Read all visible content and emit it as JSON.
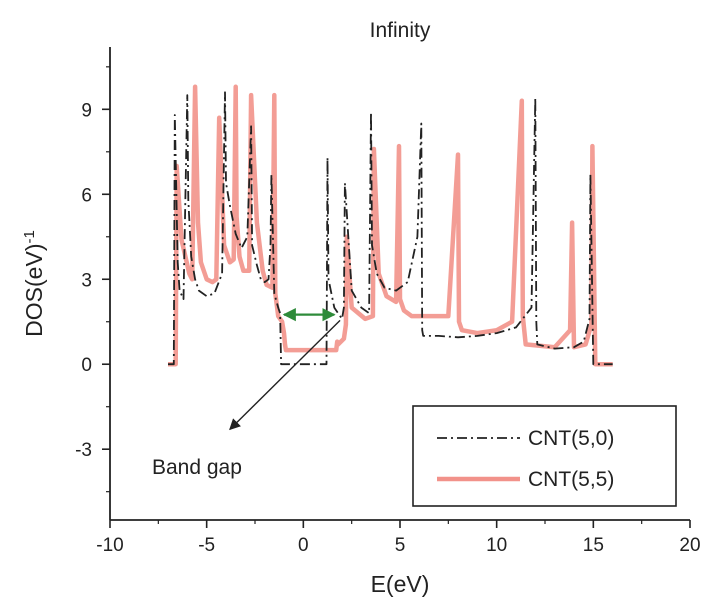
{
  "chart_data": {
    "type": "line",
    "title": "Infinity",
    "xlabel": "E(eV)",
    "ylabel": "DOS(eV)",
    "ylabel_superscript": "-1",
    "xlim": [
      -10,
      20
    ],
    "ylim": [
      -5.5,
      11.2
    ],
    "xticks": [
      -10,
      -5,
      0,
      5,
      10,
      15,
      20
    ],
    "yticks": [
      -3,
      0,
      3,
      6,
      9
    ],
    "legend_position": "lower-right",
    "annotation": {
      "text": "Band gap"
    },
    "series": [
      {
        "name": "CNT(5,0)",
        "color": "#222222",
        "style": "dash-dot",
        "x": [
          -7.0,
          -6.7,
          -6.65,
          -6.5,
          -6.4,
          -6.2,
          -6.0,
          -5.95,
          -5.8,
          -5.6,
          -5.4,
          -5.0,
          -4.6,
          -4.2,
          -4.05,
          -4.0,
          -3.8,
          -3.5,
          -3.2,
          -2.9,
          -2.7,
          -2.65,
          -2.4,
          -2.2,
          -2.0,
          -1.8,
          -1.7,
          -1.65,
          -1.5,
          -1.3,
          -1.2,
          -1.15,
          -1.1,
          1.2,
          1.25,
          1.3,
          1.6,
          2.0,
          2.1,
          2.15,
          2.5,
          3.0,
          3.4,
          3.5,
          3.55,
          3.8,
          4.2,
          4.8,
          5.4,
          5.9,
          6.1,
          6.15,
          6.2,
          7.0,
          8.0,
          9.0,
          10.0,
          11.0,
          11.8,
          12.0,
          12.05,
          12.1,
          13.0,
          14.0,
          14.5,
          14.8,
          14.85,
          15.0,
          15.5,
          16.0
        ],
        "y": [
          0.0,
          0.0,
          8.8,
          3.6,
          2.6,
          2.3,
          9.5,
          5.8,
          3.8,
          3.0,
          2.6,
          2.4,
          2.5,
          3.2,
          9.6,
          6.4,
          5.6,
          4.6,
          4.1,
          4.5,
          8.4,
          4.2,
          3.5,
          3.0,
          2.9,
          3.0,
          4.2,
          6.7,
          2.5,
          2.0,
          1.8,
          0.0,
          0.0,
          0.0,
          7.3,
          3.0,
          2.0,
          1.6,
          2.0,
          6.4,
          2.6,
          2.0,
          1.8,
          8.9,
          4.2,
          3.2,
          2.7,
          2.6,
          2.9,
          4.5,
          8.5,
          1.2,
          1.0,
          1.0,
          0.95,
          1.0,
          1.1,
          1.3,
          2.0,
          9.4,
          1.5,
          0.7,
          0.55,
          0.6,
          0.8,
          1.6,
          6.7,
          0.0,
          0.0,
          0.0
        ]
      },
      {
        "name": "CNT(5,5)",
        "color": "#f2928a",
        "style": "solid",
        "x": [
          -7.0,
          -6.6,
          -6.55,
          -6.3,
          -5.9,
          -5.75,
          -5.6,
          -5.45,
          -5.3,
          -5.0,
          -4.7,
          -4.5,
          -4.35,
          -4.1,
          -3.8,
          -3.6,
          -3.5,
          -3.45,
          -3.3,
          -3.1,
          -2.8,
          -2.7,
          -2.4,
          -2.1,
          -1.9,
          -1.6,
          -1.5,
          -1.45,
          -1.3,
          -1.1,
          -1.0,
          -0.95,
          -0.9,
          1.7,
          1.75,
          1.8,
          2.1,
          2.2,
          2.25,
          2.5,
          3.2,
          3.6,
          3.65,
          3.9,
          4.3,
          4.8,
          4.95,
          5.0,
          5.2,
          5.6,
          7.5,
          8.0,
          8.05,
          8.2,
          9.0,
          10.0,
          10.8,
          11.3,
          11.35,
          11.5,
          13.0,
          13.8,
          13.9,
          14.0,
          14.6,
          14.9,
          14.95,
          15.1,
          16.0
        ],
        "y": [
          0.0,
          0.0,
          7.0,
          4.4,
          3.2,
          3.0,
          9.8,
          5.0,
          3.6,
          3.0,
          2.9,
          3.0,
          8.7,
          4.2,
          3.6,
          3.7,
          9.8,
          5.2,
          3.8,
          3.3,
          3.3,
          9.5,
          5.0,
          3.3,
          2.8,
          2.7,
          9.5,
          2.5,
          1.7,
          1.5,
          1.1,
          0.7,
          0.5,
          0.5,
          0.8,
          0.7,
          0.9,
          1.4,
          4.5,
          2.0,
          1.6,
          1.7,
          7.6,
          3.2,
          2.4,
          2.2,
          7.7,
          2.3,
          1.9,
          1.7,
          1.7,
          7.4,
          1.5,
          1.2,
          1.1,
          1.2,
          1.5,
          9.3,
          1.7,
          0.7,
          0.6,
          1.2,
          5.0,
          0.6,
          0.7,
          1.4,
          7.7,
          0.0,
          0.0
        ]
      }
    ]
  }
}
